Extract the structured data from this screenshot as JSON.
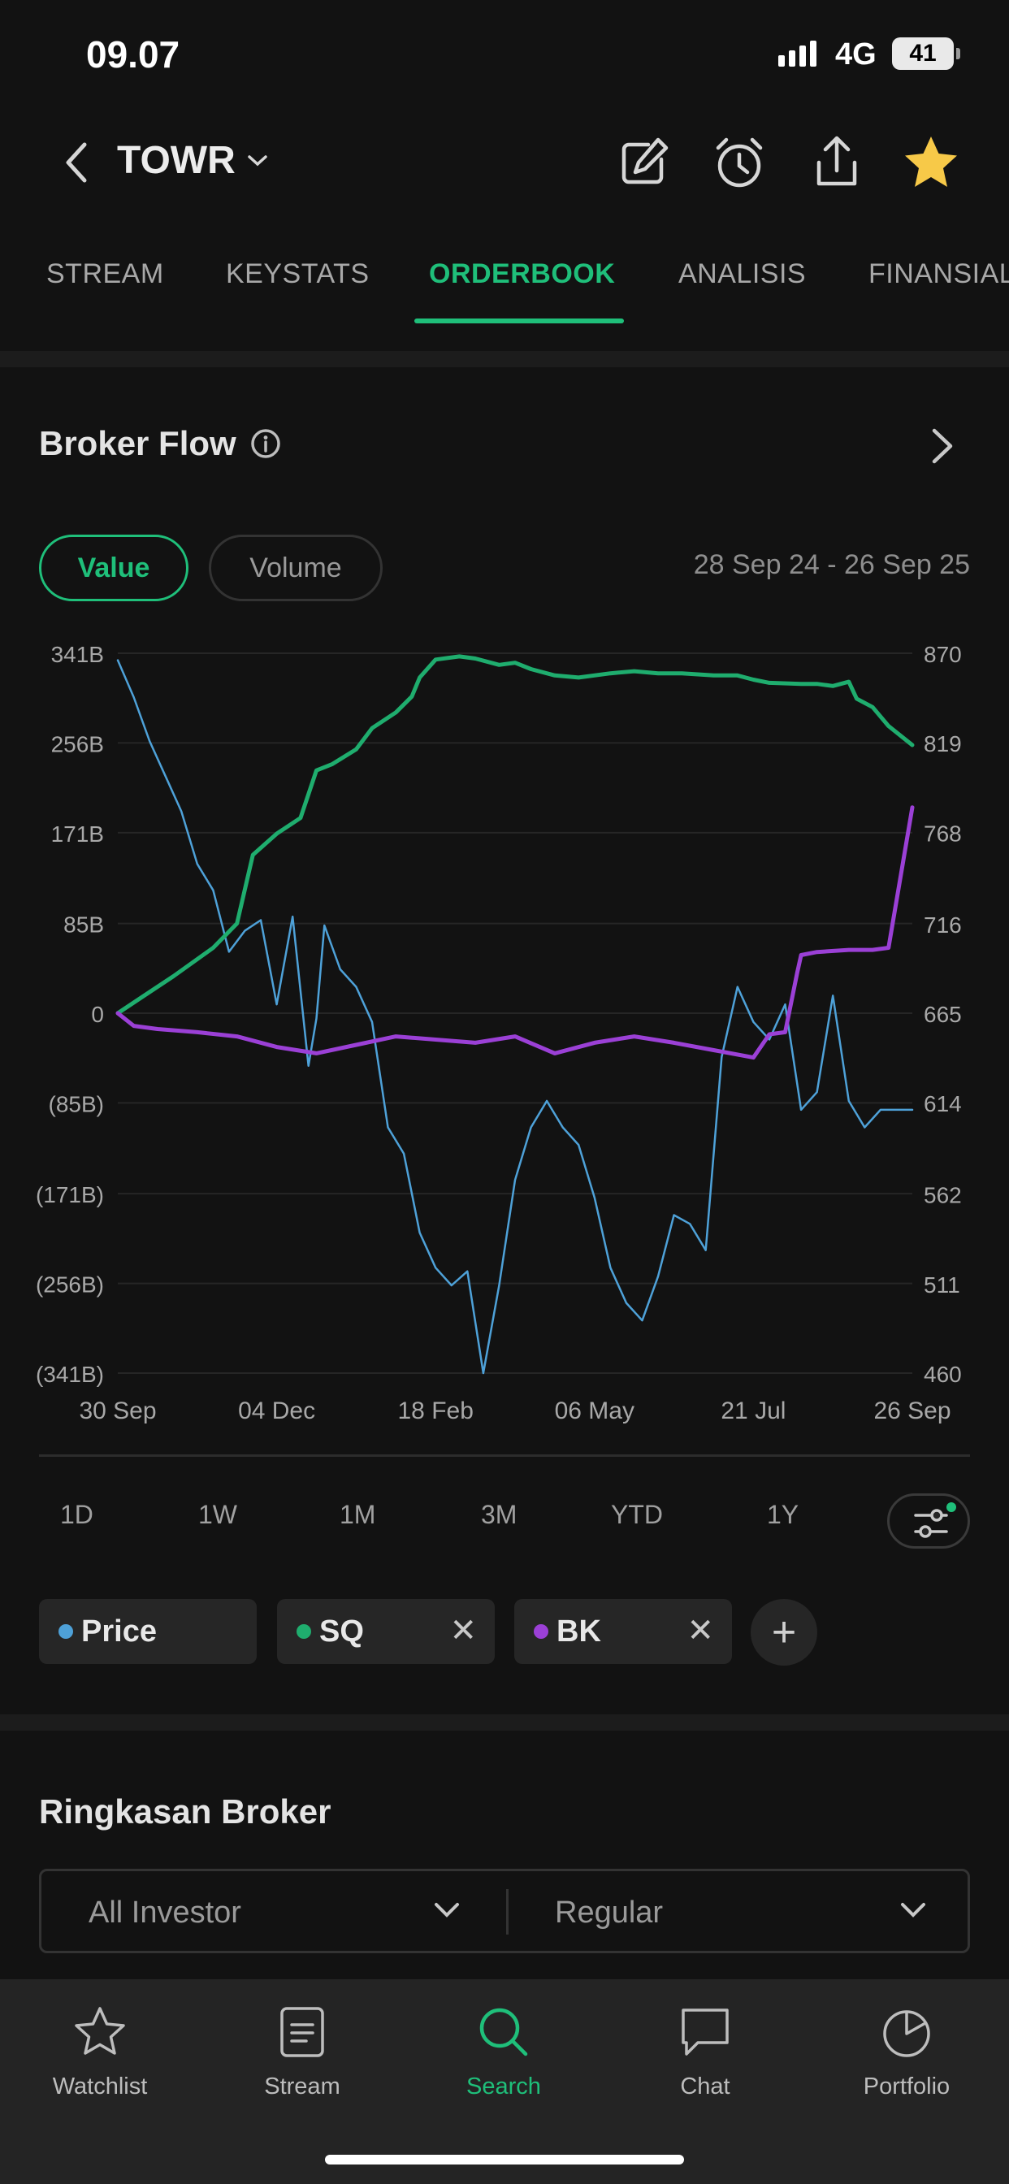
{
  "status_bar": {
    "time": "09.07",
    "network": "4G",
    "battery": "41"
  },
  "header": {
    "ticker": "TOWR"
  },
  "tabs": [
    {
      "label": "STREAM"
    },
    {
      "label": "KEYSTATS"
    },
    {
      "label": "ORDERBOOK",
      "active": true
    },
    {
      "label": "ANALISIS"
    },
    {
      "label": "FINANSIAL"
    }
  ],
  "broker_flow": {
    "title": "Broker Flow",
    "toggle": {
      "value_label": "Value",
      "volume_label": "Volume",
      "selected": "Value"
    },
    "date_range": "28 Sep 24 - 26 Sep 25"
  },
  "chart_data": {
    "type": "line",
    "left_axis_ticks": [
      "341B",
      "256B",
      "171B",
      "85B",
      "0",
      "(85B)",
      "(171B)",
      "(256B)",
      "(341B)"
    ],
    "left_axis_values": [
      341,
      256,
      171,
      85,
      0,
      -85,
      -171,
      -256,
      -341
    ],
    "right_axis_ticks": [
      "870",
      "819",
      "768",
      "716",
      "665",
      "614",
      "562",
      "511",
      "460"
    ],
    "right_axis_values": [
      870,
      819,
      768,
      716,
      665,
      614,
      562,
      511,
      460
    ],
    "x_tick_labels": [
      "30 Sep",
      "04 Dec",
      "18 Feb",
      "06 May",
      "21 Jul",
      "26 Sep"
    ],
    "left_ylim": [
      -341,
      341
    ],
    "right_ylim": [
      460,
      870
    ],
    "grid": true,
    "series": [
      {
        "name": "SQ",
        "axis": "left",
        "color": "#1fad6e",
        "x": [
          0,
          0.03,
          0.07,
          0.12,
          0.15,
          0.17,
          0.2,
          0.23,
          0.25,
          0.27,
          0.3,
          0.32,
          0.35,
          0.37,
          0.38,
          0.4,
          0.43,
          0.45,
          0.48,
          0.5,
          0.52,
          0.55,
          0.58,
          0.62,
          0.65,
          0.68,
          0.71,
          0.75,
          0.78,
          0.8,
          0.82,
          0.86,
          0.88,
          0.9,
          0.92,
          0.93,
          0.95,
          0.97,
          1.0
        ],
        "values": [
          0,
          15,
          35,
          62,
          85,
          150,
          170,
          185,
          230,
          236,
          250,
          270,
          285,
          300,
          318,
          335,
          338,
          336,
          330,
          332,
          326,
          320,
          318,
          322,
          324,
          322,
          322,
          320,
          320,
          316,
          313,
          312,
          312,
          310,
          314,
          298,
          290,
          272,
          254
        ]
      },
      {
        "name": "BK",
        "axis": "left",
        "color": "#9b40d6",
        "x": [
          0,
          0.02,
          0.05,
          0.1,
          0.15,
          0.2,
          0.25,
          0.3,
          0.35,
          0.4,
          0.45,
          0.5,
          0.55,
          0.6,
          0.65,
          0.7,
          0.75,
          0.8,
          0.82,
          0.84,
          0.855,
          0.86,
          0.88,
          0.92,
          0.95,
          0.97,
          1.0
        ],
        "values": [
          0,
          -12,
          -15,
          -18,
          -22,
          -32,
          -38,
          -30,
          -22,
          -25,
          -28,
          -22,
          -38,
          -28,
          -22,
          -28,
          -35,
          -42,
          -20,
          -18,
          38,
          55,
          58,
          60,
          60,
          62,
          195
        ]
      },
      {
        "name": "Price",
        "axis": "right",
        "color": "#4ea1d8",
        "x": [
          0,
          0.02,
          0.04,
          0.06,
          0.08,
          0.1,
          0.12,
          0.14,
          0.16,
          0.18,
          0.2,
          0.22,
          0.24,
          0.25,
          0.26,
          0.28,
          0.3,
          0.32,
          0.34,
          0.36,
          0.38,
          0.4,
          0.42,
          0.44,
          0.46,
          0.48,
          0.5,
          0.52,
          0.54,
          0.56,
          0.58,
          0.6,
          0.62,
          0.64,
          0.66,
          0.68,
          0.7,
          0.72,
          0.74,
          0.76,
          0.78,
          0.8,
          0.82,
          0.84,
          0.86,
          0.88,
          0.9,
          0.92,
          0.94,
          0.96,
          0.98,
          1.0
        ],
        "values": [
          866,
          845,
          820,
          800,
          780,
          750,
          735,
          700,
          712,
          718,
          670,
          720,
          635,
          662,
          715,
          690,
          680,
          660,
          600,
          585,
          540,
          520,
          510,
          518,
          460,
          510,
          570,
          600,
          615,
          600,
          590,
          560,
          520,
          500,
          490,
          515,
          550,
          545,
          530,
          640,
          680,
          660,
          650,
          670,
          610,
          620,
          675,
          615,
          600,
          610,
          610,
          610
        ]
      }
    ]
  },
  "period_buttons": [
    "1D",
    "1W",
    "1M",
    "3M",
    "YTD",
    "1Y"
  ],
  "series_chips": [
    {
      "label": "Price",
      "color": "#4ea1d8",
      "removable": false
    },
    {
      "label": "SQ",
      "color": "#1fad6e",
      "removable": true
    },
    {
      "label": "BK",
      "color": "#9b40d6",
      "removable": true
    }
  ],
  "add_chip_label": "+",
  "ringkasan": {
    "title": "Ringkasan Broker",
    "investor_select": "All Investor",
    "market_select": "Regular"
  },
  "bottom_nav": [
    {
      "label": "Watchlist",
      "icon": "star-outline-icon"
    },
    {
      "label": "Stream",
      "icon": "stream-icon"
    },
    {
      "label": "Search",
      "icon": "search-icon",
      "active": true
    },
    {
      "label": "Chat",
      "icon": "chat-icon"
    },
    {
      "label": "Portfolio",
      "icon": "portfolio-icon"
    }
  ],
  "colors": {
    "accent": "#1fbf7a",
    "background": "#121212",
    "star": "#f7c948"
  }
}
